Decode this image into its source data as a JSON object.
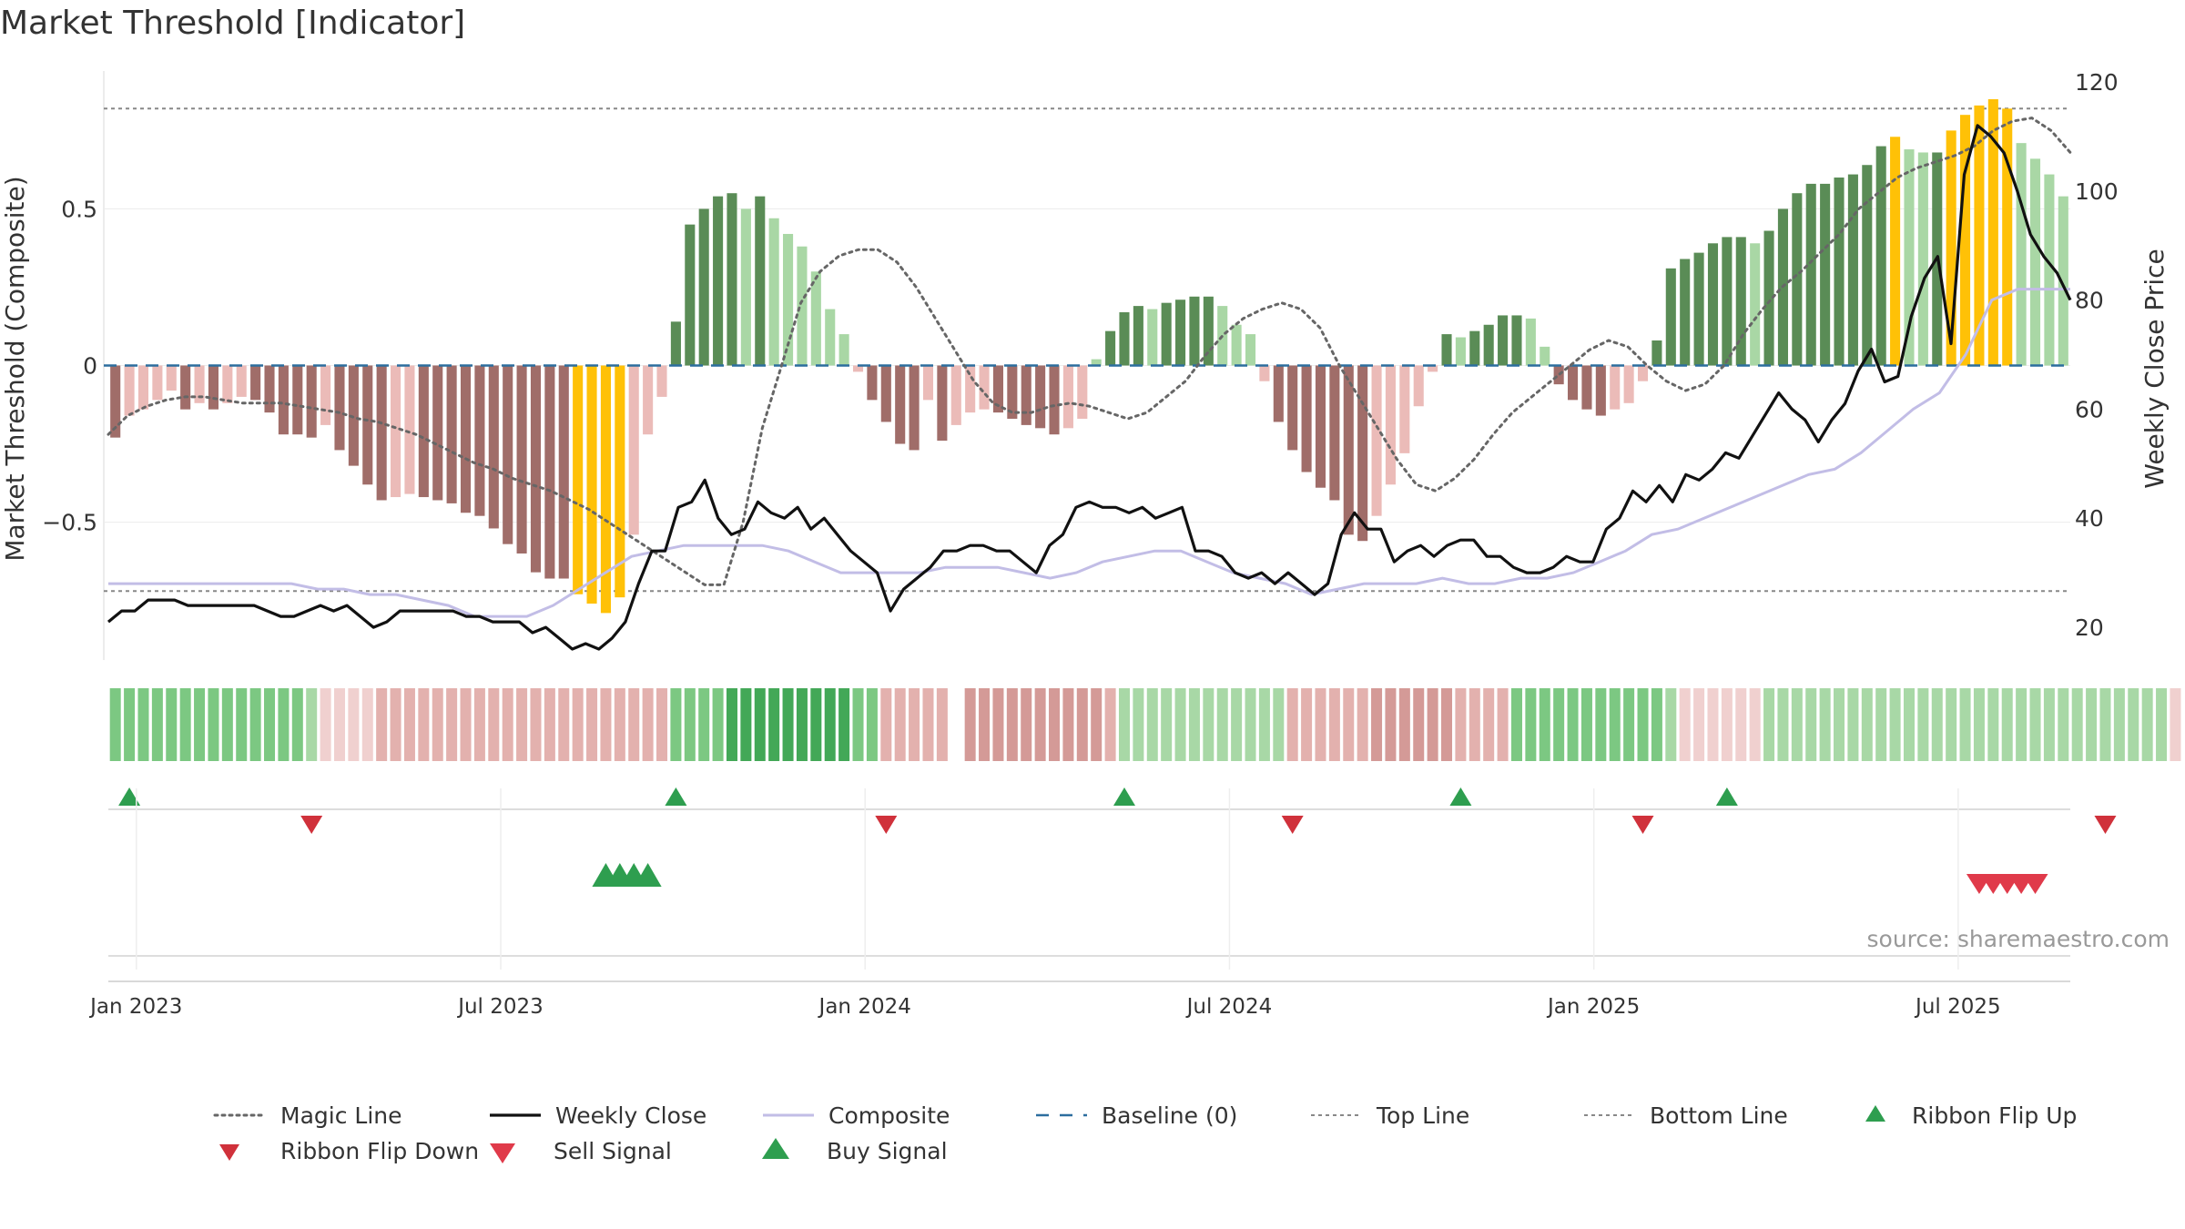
{
  "chart_data": {
    "type": "bar",
    "title": "Market Threshold [Indicator]",
    "ylabel_left": "Market Threshold (Composite)",
    "ylabel_right": "Weekly Close Price",
    "source": "source: sharemaestro.com",
    "ylim_left": [
      -0.94,
      0.94
    ],
    "ylim_right": [
      14,
      122
    ],
    "yticks_left": [
      {
        "value": 0.5,
        "label": "0.5"
      },
      {
        "value": 0,
        "label": "0"
      },
      {
        "value": -0.5,
        "label": "−0.5"
      }
    ],
    "yticks_right": [
      {
        "value": 120,
        "label": "120"
      },
      {
        "value": 100,
        "label": "100"
      },
      {
        "value": 80,
        "label": "80"
      },
      {
        "value": 60,
        "label": "60"
      },
      {
        "value": 40,
        "label": "40"
      },
      {
        "value": 20,
        "label": "20"
      }
    ],
    "xticks": [
      {
        "week": 2,
        "label": "Jan 2023"
      },
      {
        "week": 28,
        "label": "Jul 2023"
      },
      {
        "week": 54,
        "label": "Jan 2024"
      },
      {
        "week": 80,
        "label": "Jul 2024"
      },
      {
        "week": 106,
        "label": "Jan 2025"
      },
      {
        "week": 132,
        "label": "Jul 2025"
      }
    ],
    "top_line": 0.82,
    "bottom_line": -0.72,
    "composite_bars": [
      -0.23,
      -0.16,
      -0.14,
      -0.11,
      -0.08,
      -0.14,
      -0.12,
      -0.14,
      -0.12,
      -0.1,
      -0.11,
      -0.15,
      -0.22,
      -0.22,
      -0.23,
      -0.19,
      -0.27,
      -0.32,
      -0.38,
      -0.43,
      -0.42,
      -0.41,
      -0.42,
      -0.43,
      -0.44,
      -0.47,
      -0.48,
      -0.52,
      -0.57,
      -0.6,
      -0.66,
      -0.68,
      -0.68,
      -0.73,
      -0.76,
      -0.79,
      -0.74,
      -0.54,
      -0.22,
      -0.1,
      0.14,
      0.45,
      0.5,
      0.54,
      0.55,
      0.5,
      0.54,
      0.47,
      0.42,
      0.38,
      0.3,
      0.18,
      0.1,
      -0.02,
      -0.11,
      -0.18,
      -0.25,
      -0.27,
      -0.11,
      -0.24,
      -0.19,
      -0.15,
      -0.14,
      -0.15,
      -0.17,
      -0.19,
      -0.2,
      -0.22,
      -0.2,
      -0.17,
      0.02,
      0.11,
      0.17,
      0.19,
      0.18,
      0.2,
      0.21,
      0.22,
      0.22,
      0.19,
      0.13,
      0.1,
      -0.05,
      -0.18,
      -0.27,
      -0.34,
      -0.39,
      -0.43,
      -0.54,
      -0.56,
      -0.48,
      -0.38,
      -0.28,
      -0.13,
      -0.02,
      0.1,
      0.09,
      0.11,
      0.13,
      0.16,
      0.16,
      0.15,
      0.06,
      -0.06,
      -0.11,
      -0.14,
      -0.16,
      -0.14,
      -0.12,
      -0.05,
      0.08,
      0.31,
      0.34,
      0.36,
      0.39,
      0.41,
      0.41,
      0.39,
      0.43,
      0.5,
      0.55,
      0.58,
      0.58,
      0.6,
      0.61,
      0.64,
      0.7,
      0.73,
      0.69,
      0.68,
      0.68,
      0.75,
      0.8,
      0.83,
      0.85,
      0.82,
      0.71,
      0.66,
      0.61,
      0.54
    ],
    "weekly_close": [
      21,
      23,
      23,
      25,
      25,
      25,
      24,
      24,
      24,
      24,
      24,
      24,
      23,
      22,
      22,
      23,
      24,
      23,
      24,
      22,
      20,
      21,
      23,
      23,
      23,
      23,
      23,
      22,
      22,
      21,
      21,
      21,
      19,
      20,
      18,
      16,
      17,
      16,
      18,
      21,
      28,
      34,
      34,
      42,
      43,
      47,
      40,
      37,
      38,
      43,
      41,
      40,
      42,
      38,
      40,
      37,
      34,
      32,
      30,
      23,
      27,
      29,
      31,
      34,
      34,
      35,
      35,
      34,
      34,
      32,
      30,
      35,
      37,
      42,
      43,
      42,
      42,
      41,
      42,
      40,
      41,
      42,
      34,
      34,
      33,
      30,
      29,
      30,
      28,
      30,
      28,
      26,
      28,
      37,
      41,
      38,
      38,
      32,
      34,
      35,
      33,
      35,
      36,
      36,
      33,
      33,
      31,
      30,
      30,
      31,
      33,
      32,
      32,
      38,
      40,
      45,
      43,
      46,
      43,
      48,
      47,
      49,
      52,
      51,
      55,
      59,
      63,
      60,
      58,
      54,
      58,
      61,
      67,
      71,
      65,
      66,
      77,
      84,
      88,
      72,
      103,
      112,
      110,
      107,
      100,
      92,
      88,
      85,
      80
    ],
    "magic_line": [
      -0.22,
      -0.16,
      -0.13,
      -0.11,
      -0.1,
      -0.1,
      -0.11,
      -0.12,
      -0.12,
      -0.12,
      -0.13,
      -0.14,
      -0.15,
      -0.17,
      -0.18,
      -0.2,
      -0.22,
      -0.25,
      -0.28,
      -0.31,
      -0.33,
      -0.36,
      -0.38,
      -0.4,
      -0.43,
      -0.46,
      -0.5,
      -0.54,
      -0.58,
      -0.62,
      -0.66,
      -0.7,
      -0.7,
      -0.5,
      -0.2,
      0.0,
      0.2,
      0.3,
      0.35,
      0.37,
      0.37,
      0.33,
      0.25,
      0.15,
      0.05,
      -0.05,
      -0.12,
      -0.15,
      -0.15,
      -0.13,
      -0.12,
      -0.13,
      -0.15,
      -0.17,
      -0.15,
      -0.1,
      -0.05,
      0.03,
      0.1,
      0.15,
      0.18,
      0.2,
      0.18,
      0.12,
      0.0,
      -0.1,
      -0.2,
      -0.3,
      -0.38,
      -0.4,
      -0.36,
      -0.3,
      -0.22,
      -0.15,
      -0.1,
      -0.05,
      0.0,
      0.05,
      0.08,
      0.06,
      0.0,
      -0.05,
      -0.08,
      -0.06,
      0.0,
      0.1,
      0.18,
      0.25,
      0.3,
      0.36,
      0.42,
      0.5,
      0.55,
      0.6,
      0.63,
      0.65,
      0.67,
      0.7,
      0.75,
      0.78,
      0.79,
      0.75,
      0.68
    ],
    "composite_line": [
      28,
      28,
      28,
      28,
      28,
      28,
      28,
      28,
      27,
      27,
      26,
      26,
      25,
      24,
      22,
      22,
      22,
      24,
      27,
      30,
      33,
      34,
      35,
      35,
      35,
      35,
      34,
      32,
      30,
      30,
      30,
      30,
      31,
      31,
      31,
      30,
      29,
      30,
      32,
      33,
      34,
      34,
      32,
      30,
      29,
      28,
      26,
      27,
      28,
      28,
      28,
      29,
      28,
      28,
      29,
      29,
      30,
      32,
      34,
      37,
      38,
      40,
      42,
      44,
      46,
      48,
      49,
      52,
      56,
      60,
      63,
      70,
      80,
      82,
      82,
      82
    ],
    "ribbon": [
      "g2",
      "g2",
      "g2",
      "g2",
      "g2",
      "g2",
      "g2",
      "g2",
      "g2",
      "g2",
      "g2",
      "g2",
      "g2",
      "g2",
      "g1",
      "r1",
      "r1",
      "r1",
      "r1",
      "r2",
      "r2",
      "r2",
      "r2",
      "r2",
      "r2",
      "r2",
      "r2",
      "r2",
      "r2",
      "r2",
      "r2",
      "r2",
      "r2",
      "r2",
      "r2",
      "r2",
      "r2",
      "r2",
      "r2",
      "r2",
      "g2",
      "g2",
      "g2",
      "g2",
      "g3",
      "g3",
      "g3",
      "g3",
      "g3",
      "g3",
      "g3",
      "g3",
      "g3",
      "g2",
      "g2",
      "r2",
      "r2",
      "r2",
      "r2",
      "r2",
      null,
      "r3",
      "r3",
      "r3",
      "r3",
      "r3",
      "r3",
      "r3",
      "r3",
      "r3",
      "r3",
      "r2",
      "g1",
      "g1",
      "g1",
      "g1",
      "g1",
      "g1",
      "g1",
      "g1",
      "g1",
      "g1",
      "g1",
      "g1",
      "r2",
      "r2",
      "r2",
      "r2",
      "r2",
      "r2",
      "r3",
      "r3",
      "r3",
      "r3",
      "r3",
      "r3",
      "r2",
      "r2",
      "r2",
      "r2",
      "g2",
      "g2",
      "g2",
      "g2",
      "g2",
      "g2",
      "g2",
      "g2",
      "g2",
      "g2",
      "g2",
      "g1",
      "r1",
      "r1",
      "r1",
      "r1",
      "r1",
      "r1",
      "g1",
      "g1",
      "g1",
      "g1",
      "g1",
      "g1",
      "g1",
      "g1",
      "g1",
      "g1",
      "g1",
      "g1",
      "g1",
      "g1",
      "g1",
      "g1",
      "g1",
      "g1",
      "g1",
      "g1",
      "g1",
      "g1",
      "g1",
      "g1",
      "g1",
      "g1",
      "g1",
      "g1",
      "g1",
      "r1"
    ],
    "ribbon_flip_up": [
      1,
      40,
      72,
      96,
      115
    ],
    "ribbon_flip_down": [
      14,
      55,
      84,
      109,
      142
    ],
    "buy_signals": [
      35,
      36,
      37,
      38
    ],
    "sell_signals": [
      133,
      134,
      135,
      136,
      137
    ],
    "legend": [
      {
        "label": "Magic Line",
        "style": "dotted-gray"
      },
      {
        "label": "Weekly Close",
        "style": "solid-black"
      },
      {
        "label": "Composite",
        "style": "solid-lavender"
      },
      {
        "label": "Baseline (0)",
        "style": "dashed-blue"
      },
      {
        "label": "Top Line",
        "style": "dotted-lightgray"
      },
      {
        "label": "Bottom Line",
        "style": "dotted-lightgray"
      },
      {
        "label": "Ribbon Flip Up",
        "style": "tri-up-green"
      },
      {
        "label": "Ribbon Flip Down",
        "style": "tri-down-red"
      },
      {
        "label": "Sell Signal",
        "style": "tri-down-pinkred"
      },
      {
        "label": "Buy Signal",
        "style": "tri-up-green-large"
      }
    ]
  },
  "colors": {
    "bar_neg_light": "#ebbbb8",
    "bar_neg_dark": "#a06d69",
    "bar_pos_light": "#a9d7a5",
    "bar_pos_dark": "#5a8c56",
    "bar_extreme": "#ffc107",
    "close_line": "#111111",
    "composite_line": "#c2bde6",
    "magic_line": "#666666",
    "baseline": "#2c6e9e",
    "threshold_line": "#888888",
    "flip_up": "#2e9e4f",
    "flip_down": "#d0313b",
    "sell": "#e03a4a",
    "buy": "#2e9e4f",
    "ribbon_g1": "#a8d8a6",
    "ribbon_g2": "#7cc882",
    "ribbon_g3": "#43a857",
    "ribbon_r1": "#f0d0cf",
    "ribbon_r2": "#e3b1ae",
    "ribbon_r3": "#d49a97"
  }
}
